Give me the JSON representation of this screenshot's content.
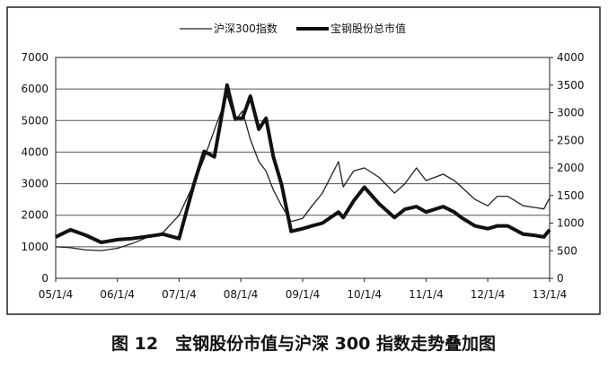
{
  "chart_data": {
    "type": "line",
    "title": "图 12　宝钢股份市值与沪深 300 指数走势叠加图",
    "x": [
      "05/1/4",
      "05/4/1",
      "05/7/1",
      "05/10/1",
      "06/1/4",
      "06/4/1",
      "06/7/1",
      "06/10/1",
      "07/1/4",
      "07/4/1",
      "07/6/1",
      "07/8/1",
      "07/10/15",
      "07/12/1",
      "08/1/14",
      "08/3/1",
      "08/4/20",
      "08/6/1",
      "08/7/15",
      "08/9/1",
      "08/10/28",
      "09/1/4",
      "09/3/1",
      "09/5/1",
      "09/8/4",
      "09/9/1",
      "09/11/1",
      "10/1/4",
      "10/4/1",
      "10/7/1",
      "10/9/1",
      "10/11/8",
      "11/1/4",
      "11/4/15",
      "11/6/20",
      "11/8/1",
      "11/10/20",
      "12/1/4",
      "12/3/1",
      "12/5/1",
      "12/8/1",
      "12/10/1",
      "12/12/1",
      "13/1/4"
    ],
    "series": [
      {
        "name": "沪深300指数",
        "color": "#222222",
        "width": 1.3,
        "axis": "y",
        "values": [
          1000,
          970,
          900,
          880,
          950,
          1100,
          1300,
          1450,
          2000,
          3000,
          3800,
          4700,
          5800,
          5000,
          5300,
          4400,
          3700,
          3400,
          2800,
          2300,
          1800,
          1900,
          2300,
          2700,
          3700,
          2900,
          3400,
          3500,
          3200,
          2700,
          3000,
          3500,
          3100,
          3300,
          3100,
          2900,
          2500,
          2300,
          2600,
          2600,
          2300,
          2250,
          2200,
          2550
        ]
      },
      {
        "name": "宝钢股份总市值",
        "color": "#111111",
        "width": 4,
        "axis": "y2",
        "values": [
          750,
          880,
          780,
          650,
          700,
          720,
          760,
          800,
          720,
          1700,
          2300,
          2200,
          3500,
          2900,
          2900,
          3300,
          2700,
          2900,
          2200,
          1700,
          850,
          900,
          950,
          1000,
          1200,
          1100,
          1400,
          1650,
          1350,
          1100,
          1250,
          1300,
          1200,
          1300,
          1200,
          1100,
          950,
          900,
          950,
          950,
          800,
          780,
          750,
          880
        ]
      }
    ],
    "xlim": [
      "05/1/4",
      "13/1/4"
    ],
    "xticks": [
      "05/1/4",
      "06/1/4",
      "07/1/4",
      "08/1/4",
      "09/1/4",
      "10/1/4",
      "11/1/4",
      "12/1/4",
      "13/1/4"
    ],
    "ylim": [
      0,
      7000
    ],
    "yticks": [
      0,
      1000,
      2000,
      3000,
      4000,
      5000,
      6000,
      7000
    ],
    "y2lim": [
      0,
      4000
    ],
    "y2ticks": [
      0,
      500,
      1000,
      1500,
      2000,
      2500,
      3000,
      3500,
      4000
    ],
    "grid": true,
    "legend": "top"
  }
}
